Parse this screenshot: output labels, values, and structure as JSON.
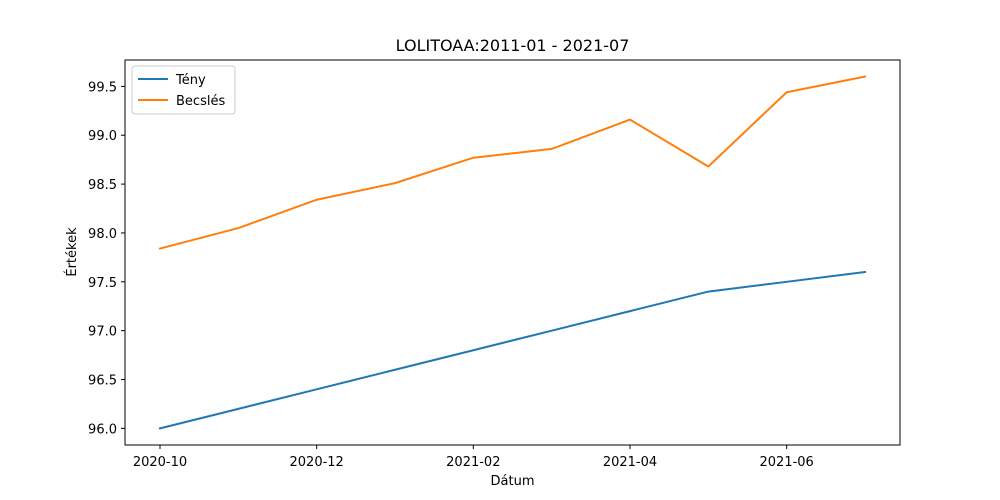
{
  "chart_data": {
    "type": "line",
    "title": "LOLITOAA:2011-01 - 2021-07",
    "xlabel": "Dátum",
    "ylabel": "Értékek",
    "x": [
      "2020-10",
      "2020-11",
      "2020-12",
      "2021-01",
      "2021-02",
      "2021-03",
      "2021-04",
      "2021-05",
      "2021-06",
      "2021-07"
    ],
    "x_ticks": [
      "2020-10",
      "2020-12",
      "2021-02",
      "2021-04",
      "2021-06"
    ],
    "y_ticks": [
      "96.0",
      "96.5",
      "97.0",
      "97.5",
      "98.0",
      "98.5",
      "99.0",
      "99.5"
    ],
    "ylim": [
      95.83,
      99.77
    ],
    "grid": false,
    "legend_position": "top-left",
    "series": [
      {
        "name": "Tény",
        "color": "#1f77b4",
        "values": [
          96.0,
          96.2,
          96.4,
          96.6,
          96.8,
          97.0,
          97.2,
          97.4,
          97.5,
          97.6
        ]
      },
      {
        "name": "Becslés",
        "color": "#ff7f0e",
        "values": [
          97.84,
          98.05,
          98.34,
          98.51,
          98.77,
          98.86,
          99.16,
          98.68,
          99.44,
          99.6
        ]
      }
    ]
  }
}
